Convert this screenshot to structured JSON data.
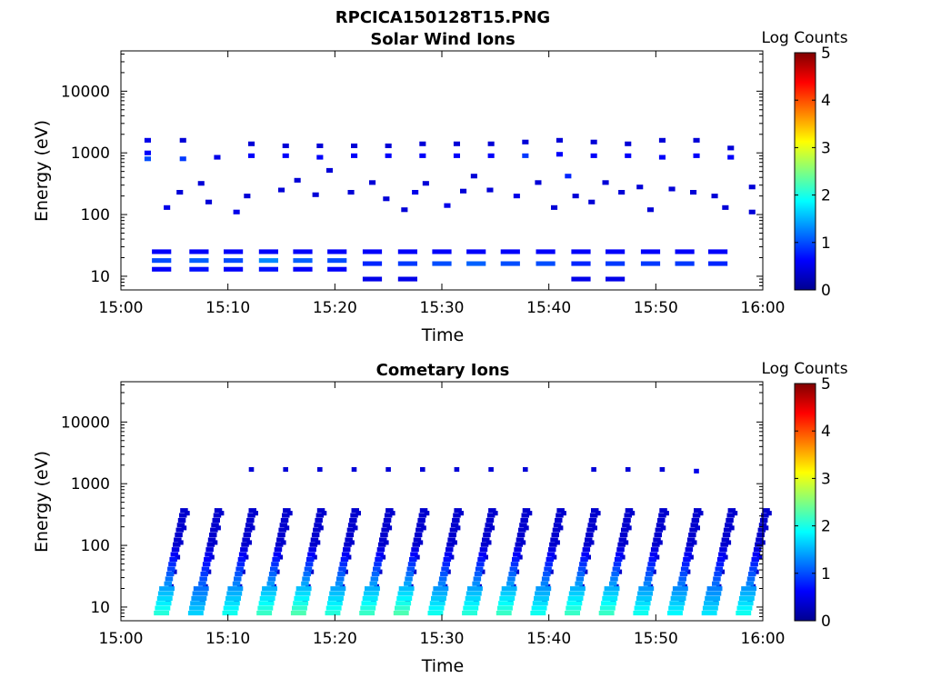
{
  "figure_title": "RPCICA150128T15.PNG",
  "chart_data": [
    {
      "type": "heatmap",
      "title": "Solar Wind Ions",
      "xlabel": "Time",
      "ylabel": "Energy (eV)",
      "x_ticks": [
        "15:00",
        "15:10",
        "15:20",
        "15:30",
        "15:40",
        "15:50",
        "16:00"
      ],
      "x_range": [
        "15:00",
        "16:00"
      ],
      "y_scale": "log",
      "y_ticks": [
        10,
        100,
        1000,
        10000
      ],
      "y_tick_labels": [
        "10",
        "100",
        "1000",
        "10000"
      ],
      "y_range": [
        6,
        45000
      ],
      "colorbar": {
        "label": "Log Counts",
        "range": [
          0,
          5
        ],
        "ticks": [
          "0",
          "1",
          "2",
          "3",
          "4",
          "5"
        ]
      },
      "cells": [
        {
          "t": 2.5,
          "e": 1600,
          "v": 0.5
        },
        {
          "t": 2.5,
          "e": 1000,
          "v": 0.6
        },
        {
          "t": 2.5,
          "e": 800,
          "v": 1.0
        },
        {
          "t": 5.8,
          "e": 1600,
          "v": 0.4
        },
        {
          "t": 5.8,
          "e": 800,
          "v": 0.9
        },
        {
          "t": 9.0,
          "e": 850,
          "v": 0.5
        },
        {
          "t": 12.2,
          "e": 1400,
          "v": 0.4
        },
        {
          "t": 12.2,
          "e": 900,
          "v": 0.6
        },
        {
          "t": 15.4,
          "e": 1300,
          "v": 0.4
        },
        {
          "t": 15.4,
          "e": 900,
          "v": 0.6
        },
        {
          "t": 18.6,
          "e": 1300,
          "v": 0.4
        },
        {
          "t": 18.6,
          "e": 850,
          "v": 0.6
        },
        {
          "t": 21.8,
          "e": 1300,
          "v": 0.4
        },
        {
          "t": 21.8,
          "e": 900,
          "v": 0.6
        },
        {
          "t": 25.0,
          "e": 1300,
          "v": 0.4
        },
        {
          "t": 25.0,
          "e": 900,
          "v": 0.6
        },
        {
          "t": 28.2,
          "e": 1400,
          "v": 0.4
        },
        {
          "t": 28.2,
          "e": 900,
          "v": 0.6
        },
        {
          "t": 31.4,
          "e": 1400,
          "v": 0.4
        },
        {
          "t": 31.4,
          "e": 900,
          "v": 0.6
        },
        {
          "t": 34.6,
          "e": 1400,
          "v": 0.4
        },
        {
          "t": 34.6,
          "e": 900,
          "v": 0.6
        },
        {
          "t": 37.8,
          "e": 1500,
          "v": 0.4
        },
        {
          "t": 37.8,
          "e": 900,
          "v": 0.9
        },
        {
          "t": 41.0,
          "e": 1600,
          "v": 0.4
        },
        {
          "t": 41.0,
          "e": 950,
          "v": 0.6
        },
        {
          "t": 44.2,
          "e": 1500,
          "v": 0.4
        },
        {
          "t": 44.2,
          "e": 900,
          "v": 0.6
        },
        {
          "t": 47.4,
          "e": 1400,
          "v": 0.4
        },
        {
          "t": 47.4,
          "e": 900,
          "v": 0.6
        },
        {
          "t": 50.6,
          "e": 1600,
          "v": 0.4
        },
        {
          "t": 50.6,
          "e": 850,
          "v": 0.6
        },
        {
          "t": 53.8,
          "e": 1600,
          "v": 0.4
        },
        {
          "t": 53.8,
          "e": 900,
          "v": 0.6
        },
        {
          "t": 57.0,
          "e": 1200,
          "v": 0.4
        },
        {
          "t": 57.0,
          "e": 850,
          "v": 0.6
        },
        {
          "t": 4.3,
          "e": 130,
          "v": 0.5
        },
        {
          "t": 5.5,
          "e": 230,
          "v": 0.4
        },
        {
          "t": 7.5,
          "e": 320,
          "v": 0.4
        },
        {
          "t": 8.2,
          "e": 160,
          "v": 0.4
        },
        {
          "t": 10.8,
          "e": 110,
          "v": 0.5
        },
        {
          "t": 11.8,
          "e": 200,
          "v": 0.4
        },
        {
          "t": 15.0,
          "e": 250,
          "v": 0.4
        },
        {
          "t": 16.5,
          "e": 360,
          "v": 0.4
        },
        {
          "t": 18.2,
          "e": 210,
          "v": 0.4
        },
        {
          "t": 19.5,
          "e": 520,
          "v": 0.4
        },
        {
          "t": 21.5,
          "e": 230,
          "v": 0.4
        },
        {
          "t": 23.5,
          "e": 330,
          "v": 0.4
        },
        {
          "t": 24.8,
          "e": 180,
          "v": 0.4
        },
        {
          "t": 26.5,
          "e": 120,
          "v": 0.4
        },
        {
          "t": 27.5,
          "e": 230,
          "v": 0.5
        },
        {
          "t": 28.5,
          "e": 320,
          "v": 0.4
        },
        {
          "t": 30.5,
          "e": 140,
          "v": 0.5
        },
        {
          "t": 32.0,
          "e": 240,
          "v": 0.4
        },
        {
          "t": 33.0,
          "e": 420,
          "v": 0.4
        },
        {
          "t": 34.5,
          "e": 250,
          "v": 0.4
        },
        {
          "t": 37.0,
          "e": 200,
          "v": 0.5
        },
        {
          "t": 39.0,
          "e": 330,
          "v": 0.4
        },
        {
          "t": 40.5,
          "e": 130,
          "v": 0.4
        },
        {
          "t": 41.8,
          "e": 420,
          "v": 0.8
        },
        {
          "t": 42.5,
          "e": 200,
          "v": 0.4
        },
        {
          "t": 44.0,
          "e": 160,
          "v": 0.4
        },
        {
          "t": 45.3,
          "e": 330,
          "v": 0.4
        },
        {
          "t": 46.8,
          "e": 230,
          "v": 0.4
        },
        {
          "t": 48.5,
          "e": 280,
          "v": 0.4
        },
        {
          "t": 49.5,
          "e": 120,
          "v": 0.4
        },
        {
          "t": 51.5,
          "e": 260,
          "v": 0.4
        },
        {
          "t": 53.5,
          "e": 230,
          "v": 0.4
        },
        {
          "t": 55.5,
          "e": 200,
          "v": 0.4
        },
        {
          "t": 56.5,
          "e": 130,
          "v": 0.4
        },
        {
          "t": 59.0,
          "e": 280,
          "v": 0.4
        },
        {
          "t": 59.0,
          "e": 110,
          "v": 0.4
        },
        {
          "t": 3.8,
          "e": 25,
          "v": 0.6
        },
        {
          "t": 3.8,
          "e": 18,
          "v": 1.0
        },
        {
          "t": 3.8,
          "e": 13,
          "v": 0.6
        },
        {
          "t": 7.3,
          "e": 25,
          "v": 0.6
        },
        {
          "t": 7.3,
          "e": 18,
          "v": 1.1
        },
        {
          "t": 7.3,
          "e": 13,
          "v": 0.7
        },
        {
          "t": 10.5,
          "e": 25,
          "v": 0.6
        },
        {
          "t": 10.5,
          "e": 18,
          "v": 1.0
        },
        {
          "t": 10.5,
          "e": 13,
          "v": 0.6
        },
        {
          "t": 13.8,
          "e": 25,
          "v": 0.6
        },
        {
          "t": 13.8,
          "e": 18,
          "v": 1.3
        },
        {
          "t": 13.8,
          "e": 13,
          "v": 0.7
        },
        {
          "t": 17.0,
          "e": 25,
          "v": 0.6
        },
        {
          "t": 17.0,
          "e": 18,
          "v": 1.1
        },
        {
          "t": 17.0,
          "e": 13,
          "v": 0.6
        },
        {
          "t": 20.2,
          "e": 25,
          "v": 0.6
        },
        {
          "t": 20.2,
          "e": 18,
          "v": 1.0
        },
        {
          "t": 20.2,
          "e": 13,
          "v": 0.6
        },
        {
          "t": 23.5,
          "e": 25,
          "v": 0.6
        },
        {
          "t": 23.5,
          "e": 16,
          "v": 0.8
        },
        {
          "t": 23.5,
          "e": 9,
          "v": 0.5
        },
        {
          "t": 26.8,
          "e": 25,
          "v": 0.6
        },
        {
          "t": 26.8,
          "e": 16,
          "v": 0.9
        },
        {
          "t": 26.8,
          "e": 9,
          "v": 0.5
        },
        {
          "t": 30.0,
          "e": 25,
          "v": 0.6
        },
        {
          "t": 30.0,
          "e": 16,
          "v": 1.0
        },
        {
          "t": 33.2,
          "e": 25,
          "v": 0.6
        },
        {
          "t": 33.2,
          "e": 16,
          "v": 1.1
        },
        {
          "t": 36.4,
          "e": 25,
          "v": 0.6
        },
        {
          "t": 36.4,
          "e": 16,
          "v": 1.0
        },
        {
          "t": 39.7,
          "e": 25,
          "v": 0.6
        },
        {
          "t": 39.7,
          "e": 16,
          "v": 1.0
        },
        {
          "t": 43.0,
          "e": 25,
          "v": 0.6
        },
        {
          "t": 43.0,
          "e": 16,
          "v": 0.8
        },
        {
          "t": 43.0,
          "e": 9,
          "v": 0.5
        },
        {
          "t": 46.2,
          "e": 25,
          "v": 0.6
        },
        {
          "t": 46.2,
          "e": 16,
          "v": 0.9
        },
        {
          "t": 46.2,
          "e": 9,
          "v": 0.5
        },
        {
          "t": 49.5,
          "e": 25,
          "v": 0.6
        },
        {
          "t": 49.5,
          "e": 16,
          "v": 0.9
        },
        {
          "t": 52.7,
          "e": 25,
          "v": 0.6
        },
        {
          "t": 52.7,
          "e": 16,
          "v": 0.9
        },
        {
          "t": 55.8,
          "e": 25,
          "v": 0.6
        },
        {
          "t": 55.8,
          "e": 16,
          "v": 0.8
        }
      ]
    },
    {
      "type": "heatmap",
      "title": "Cometary Ions",
      "xlabel": "Time",
      "ylabel": "Energy (eV)",
      "x_ticks": [
        "15:00",
        "15:10",
        "15:20",
        "15:30",
        "15:40",
        "15:50",
        "16:00"
      ],
      "x_range": [
        "15:00",
        "16:00"
      ],
      "y_scale": "log",
      "y_ticks": [
        10,
        100,
        1000,
        10000
      ],
      "y_tick_labels": [
        "10",
        "100",
        "1000",
        "10000"
      ],
      "y_range": [
        6,
        45000
      ],
      "colorbar": {
        "label": "Log Counts",
        "range": [
          0,
          5
        ],
        "ticks": [
          "0",
          "1",
          "2",
          "3",
          "4",
          "5"
        ]
      },
      "sweep_times": [
        3.8,
        7.0,
        10.2,
        13.4,
        16.6,
        19.8,
        23.0,
        26.2,
        29.4,
        32.6,
        35.8,
        39.0,
        42.2,
        45.4,
        48.6,
        51.8,
        55.0,
        58.2
      ],
      "sweep_peak_log_counts": [
        1.7,
        1.3,
        1.6,
        1.8,
        1.9,
        1.7,
        1.8,
        1.9,
        1.6,
        1.7,
        1.8,
        1.6,
        1.8,
        1.8,
        1.6,
        1.5,
        1.4,
        1.6
      ],
      "high_energy_cells": [
        {
          "t": 12.2,
          "e": 1700,
          "v": 0.4
        },
        {
          "t": 15.4,
          "e": 1700,
          "v": 0.4
        },
        {
          "t": 18.6,
          "e": 1700,
          "v": 0.4
        },
        {
          "t": 21.8,
          "e": 1700,
          "v": 0.4
        },
        {
          "t": 25.0,
          "e": 1700,
          "v": 0.4
        },
        {
          "t": 28.2,
          "e": 1700,
          "v": 0.4
        },
        {
          "t": 31.4,
          "e": 1700,
          "v": 0.4
        },
        {
          "t": 34.6,
          "e": 1700,
          "v": 0.4
        },
        {
          "t": 37.8,
          "e": 1700,
          "v": 0.4
        },
        {
          "t": 44.2,
          "e": 1700,
          "v": 0.4
        },
        {
          "t": 47.4,
          "e": 1700,
          "v": 0.4
        },
        {
          "t": 50.6,
          "e": 1700,
          "v": 0.4
        },
        {
          "t": 53.8,
          "e": 1600,
          "v": 0.5
        }
      ]
    }
  ],
  "colormap": [
    "#00008f",
    "#0000ff",
    "#0080ff",
    "#00ffff",
    "#80ff80",
    "#ffff00",
    "#ff8000",
    "#ff0000",
    "#800000"
  ]
}
